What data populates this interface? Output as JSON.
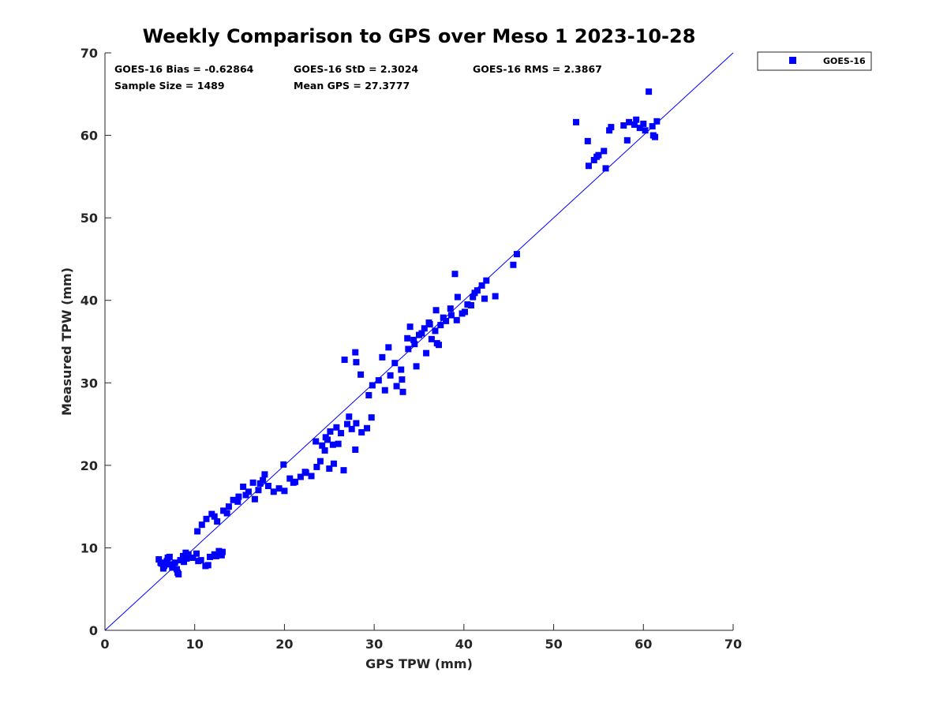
{
  "chart_data": {
    "type": "scatter",
    "title": "Weekly Comparison to GPS over Meso 1 2023-10-28",
    "xlabel": "GPS TPW (mm)",
    "ylabel": "Measured TPW (mm)",
    "xlim": [
      0,
      70
    ],
    "ylim": [
      0,
      70
    ],
    "xticks": [
      "0",
      "10",
      "20",
      "30",
      "40",
      "50",
      "60",
      "70"
    ],
    "yticks": [
      "0",
      "10",
      "20",
      "30",
      "40",
      "50",
      "60",
      "70"
    ],
    "grid": false,
    "legend_position": "outside-top-right",
    "reference_line": {
      "from": [
        0,
        0
      ],
      "to": [
        70,
        70
      ],
      "color": "#0000ff"
    },
    "stats": {
      "bias": "GOES-16 Bias = -0.62864",
      "std": "GOES-16 StD = 2.3024",
      "rms": "GOES-16 RMS = 2.3867",
      "sample_size": "Sample Size = 1489",
      "mean_gps": "Mean GPS = 27.3777"
    },
    "series": [
      {
        "name": "GOES-16",
        "color": "#0000ff",
        "marker": "square",
        "x": [
          6.0,
          6.3,
          6.6,
          6.9,
          7.2,
          7.5,
          7.8,
          8.1,
          8.4,
          8.7,
          9.0,
          6.5,
          7.0,
          7.6,
          8.2,
          8.8,
          9.3,
          9.8,
          10.2,
          10.7,
          11.2,
          11.7,
          12.2,
          12.7,
          13.0,
          6.2,
          7.3,
          8.0,
          9.1,
          10.4,
          11.5,
          12.4,
          13.1,
          10.3,
          10.8,
          11.3,
          11.9,
          12.5,
          13.2,
          13.8,
          14.3,
          14.9,
          15.4,
          16.0,
          16.5,
          17.1,
          17.6,
          18.2,
          18.8,
          19.4,
          20.0,
          20.6,
          21.2,
          21.8,
          22.4,
          23.0,
          23.6,
          24.2,
          24.8,
          25.4,
          12.2,
          13.6,
          14.8,
          15.7,
          16.7,
          17.3,
          17.8,
          19.9,
          21.0,
          22.3,
          23.5,
          24.6,
          25.1,
          25.8,
          26.3,
          27.0,
          27.5,
          28.0,
          28.6,
          29.2,
          29.7,
          24.0,
          24.5,
          25.0,
          25.5,
          26.0,
          26.6,
          27.2,
          27.9,
          28.5,
          29.4,
          26.7,
          27.9,
          28.0,
          29.8,
          30.5,
          31.2,
          31.8,
          32.5,
          33.1,
          33.8,
          34.4,
          35.0,
          35.6,
          36.2,
          36.8,
          37.4,
          38.0,
          38.6,
          39.2,
          39.8,
          40.4,
          41.0,
          41.5,
          42.0,
          42.5,
          30.9,
          31.6,
          32.3,
          33.0,
          33.7,
          34.5,
          35.3,
          36.1,
          36.9,
          37.7,
          38.5,
          39.3,
          40.1,
          40.8,
          34.0,
          35.8,
          37.2,
          39.0,
          41.2,
          43.5,
          33.2,
          34.7,
          36.4,
          37.0,
          42.3,
          45.5,
          45.9,
          52.5,
          53.8,
          54.5,
          55.0,
          55.6,
          56.2,
          57.8,
          58.4,
          59.0,
          59.6,
          60.2,
          60.6,
          61.0,
          61.5,
          53.9,
          54.8,
          55.8,
          56.4,
          58.2,
          59.2,
          60.0,
          61.3,
          61.1
        ],
        "y": [
          8.6,
          8.1,
          7.8,
          8.4,
          8.9,
          7.6,
          8.2,
          7.0,
          8.5,
          9.0,
          9.4,
          7.5,
          8.8,
          7.9,
          6.8,
          8.3,
          9.2,
          8.8,
          9.3,
          8.5,
          7.8,
          8.9,
          9.2,
          9.6,
          9.1,
          8.2,
          8.0,
          7.4,
          8.7,
          8.4,
          7.9,
          9.0,
          9.5,
          12.0,
          12.8,
          13.5,
          14.1,
          13.2,
          14.5,
          15.0,
          15.8,
          16.2,
          17.4,
          16.8,
          17.9,
          17.0,
          18.2,
          17.5,
          16.8,
          17.2,
          16.9,
          18.4,
          18.0,
          18.6,
          19.1,
          18.7,
          19.8,
          22.4,
          23.1,
          22.5,
          13.8,
          14.2,
          15.6,
          16.4,
          15.9,
          17.8,
          18.9,
          20.1,
          17.9,
          19.2,
          22.9,
          23.4,
          24.1,
          24.6,
          23.9,
          25.0,
          24.4,
          25.1,
          24.0,
          24.5,
          25.8,
          20.5,
          21.8,
          19.6,
          20.2,
          22.6,
          19.4,
          25.9,
          21.9,
          31.0,
          28.5,
          32.8,
          33.7,
          32.5,
          29.7,
          30.3,
          29.1,
          30.9,
          29.6,
          30.4,
          34.1,
          35.2,
          35.8,
          36.6,
          37.1,
          36.3,
          37.0,
          37.5,
          38.2,
          37.6,
          38.4,
          39.5,
          40.4,
          41.2,
          41.8,
          42.4,
          33.1,
          34.3,
          32.4,
          31.6,
          35.4,
          34.7,
          36.0,
          37.3,
          38.8,
          37.9,
          39.0,
          40.4,
          38.6,
          39.4,
          36.8,
          33.6,
          34.6,
          43.2,
          40.9,
          40.5,
          28.9,
          32.0,
          35.3,
          34.8,
          40.2,
          44.3,
          45.6,
          61.6,
          59.3,
          57.0,
          57.6,
          58.1,
          60.6,
          61.2,
          61.6,
          61.3,
          60.9,
          60.6,
          65.3,
          61.1,
          61.7,
          56.3,
          57.4,
          56.0,
          61.0,
          59.4,
          61.9,
          61.4,
          59.8,
          60.0
        ]
      }
    ]
  }
}
